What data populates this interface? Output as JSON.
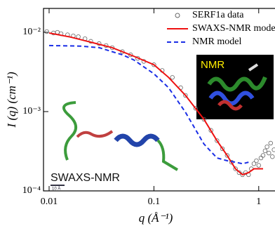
{
  "chart_data": {
    "type": "line",
    "xlabel": "q (Å⁻¹)",
    "ylabel": "I (q) (cm⁻¹)",
    "xscale": "log",
    "yscale": "log",
    "xlim": [
      0.00884,
      1.43
    ],
    "ylim": [
      0.0001,
      0.02
    ],
    "xticks": [
      0.01,
      0.1,
      1
    ],
    "yticks": [
      {
        "value": 0.0001,
        "label": "10⁻⁴"
      },
      {
        "value": 0.001,
        "label": "10⁻³"
      },
      {
        "value": 0.01,
        "label": "10⁻²"
      }
    ],
    "legend": "upper right",
    "series": [
      {
        "name": "SERF1a data",
        "color": "#666666",
        "style": "open-circle",
        "x": [
          0.0095,
          0.011,
          0.012,
          0.013,
          0.015,
          0.017,
          0.019,
          0.022,
          0.025,
          0.03,
          0.035,
          0.04,
          0.05,
          0.06,
          0.07,
          0.08,
          0.1,
          0.12,
          0.15,
          0.18,
          0.2,
          0.25,
          0.3,
          0.35,
          0.4,
          0.45,
          0.5,
          0.55,
          0.6,
          0.65,
          0.7,
          0.75,
          0.8,
          0.85,
          0.9,
          0.95,
          1.0,
          1.05,
          1.1,
          1.15,
          1.2,
          1.25,
          1.3,
          1.35,
          1.4
        ],
        "values": [
          0.0102,
          0.0098,
          0.01,
          0.0096,
          0.0093,
          0.009,
          0.0088,
          0.0083,
          0.0077,
          0.0072,
          0.0068,
          0.0064,
          0.0057,
          0.0052,
          0.0047,
          0.0043,
          0.0039,
          0.0033,
          0.0027,
          0.002,
          0.0016,
          0.0011,
          0.0008,
          0.00058,
          0.00043,
          0.00034,
          0.00028,
          0.00023,
          0.00019,
          0.00017,
          0.00016,
          0.00017,
          0.00016,
          0.00019,
          0.00022,
          0.00024,
          0.00021,
          0.00026,
          0.00028,
          0.00032,
          0.00036,
          0.0003,
          0.0004,
          0.00027,
          0.00033
        ]
      },
      {
        "name": "SWAXS-NMR model",
        "color": "#ee1111",
        "style": "solid",
        "x": [
          0.01,
          0.016,
          0.025,
          0.04,
          0.064,
          0.1,
          0.138,
          0.2,
          0.3,
          0.4,
          0.5,
          0.6,
          0.7,
          0.8,
          0.9,
          1.0,
          1.1
        ],
        "values": [
          0.0098,
          0.0087,
          0.0075,
          0.0064,
          0.005,
          0.0039,
          0.0027,
          0.0016,
          0.0008,
          0.00043,
          0.00028,
          0.00019,
          0.00016,
          0.00017,
          0.00019,
          0.00019,
          0.00019
        ]
      },
      {
        "name": "NMR model",
        "color": "#1a2ee6",
        "style": "dashed",
        "x": [
          0.01,
          0.02,
          0.03,
          0.05,
          0.064,
          0.1,
          0.138,
          0.2,
          0.3,
          0.4,
          0.5,
          0.6,
          0.7,
          0.8
        ],
        "values": [
          0.0068,
          0.0067,
          0.0064,
          0.0052,
          0.0045,
          0.003,
          0.002,
          0.00098,
          0.00039,
          0.00026,
          0.00024,
          0.00023,
          0.00022,
          0.00023
        ]
      }
    ],
    "annotations": [
      "NMR",
      "SWAXS-NMR",
      "10 Å"
    ]
  }
}
